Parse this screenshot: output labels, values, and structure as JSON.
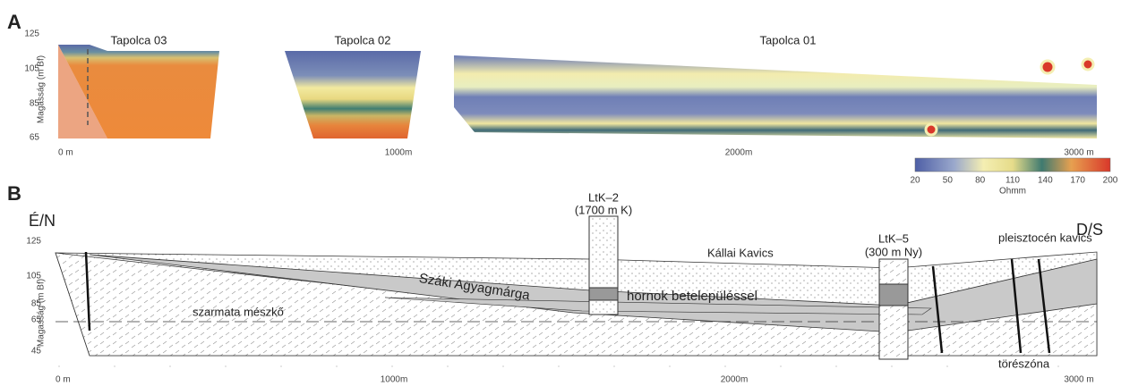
{
  "panel_a": {
    "label": "A",
    "y_axis_label": "Magasság (m Bf)",
    "yticks": [
      125,
      105,
      85,
      65
    ],
    "xticks": [
      "0 m",
      "1000m",
      "2000m",
      "3000 m"
    ],
    "sections": [
      "Tapolca 03",
      "Tapolca 02",
      "Tapolca 01"
    ],
    "colorbar": {
      "ticks": [
        20,
        50,
        80,
        110,
        140,
        170,
        200
      ],
      "unit": "Ohmm"
    }
  },
  "panel_b": {
    "label": "B",
    "left_end": "É/N",
    "right_end": "D/S",
    "y_axis_label": "Magasság (m Bf)",
    "yticks": [
      125,
      105,
      85,
      65,
      45
    ],
    "xticks": [
      "0 m",
      "1000m",
      "2000m",
      "3000 m"
    ],
    "wells": [
      {
        "name": "LtK–2",
        "note": "(1700 m K)"
      },
      {
        "name": "LtK–5",
        "note": "(300 m Ny)"
      }
    ],
    "units": [
      "Kállai Kavics",
      "pleisztocén kavics",
      "Száki Agyagmárga",
      "hornok betelepüléssel",
      "szarmata mészkő",
      "törészóna"
    ]
  }
}
